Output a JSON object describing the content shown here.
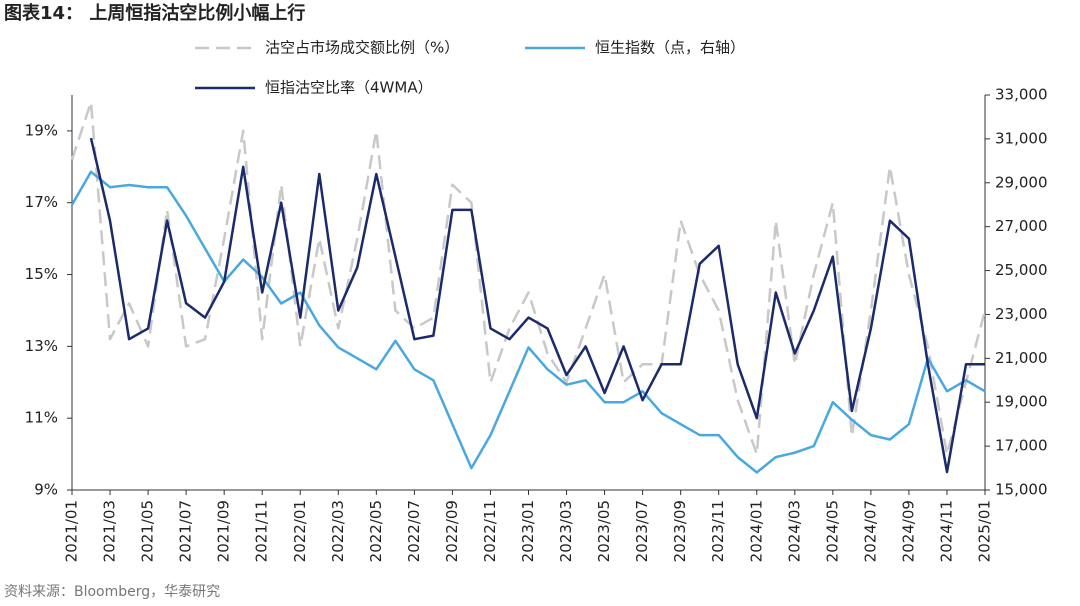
{
  "chart_data": {
    "type": "line",
    "title": "图表14：  上周恒指沽空比例小幅上行",
    "source": "资料来源：Bloomberg，华泰研究",
    "categories": [
      "2021/01",
      null,
      "2021/03",
      null,
      "2021/05",
      null,
      "2021/07",
      null,
      "2021/09",
      null,
      "2021/11",
      null,
      "2022/01",
      null,
      "2022/03",
      null,
      "2022/05",
      null,
      "2022/07",
      null,
      "2022/09",
      null,
      "2022/11",
      null,
      "2023/01",
      null,
      "2023/03",
      null,
      "2023/05",
      null,
      "2023/07",
      null,
      "2023/09",
      null,
      "2023/11",
      null,
      "2024/01",
      null,
      "2024/03",
      null,
      "2024/05",
      null,
      "2024/07",
      null,
      "2024/09",
      null,
      "2024/11",
      null,
      "2025/01"
    ],
    "series": [
      {
        "name": "沽空占市场成交额比例（%）",
        "color": "#c8c8c8",
        "dashed": true,
        "values": [
          18.2,
          19.8,
          13.2,
          14.2,
          13.0,
          16.8,
          13.0,
          13.2,
          16.0,
          19.0,
          13.2,
          17.5,
          13.0,
          16.0,
          13.5,
          16.0,
          19.0,
          14.0,
          13.5,
          13.8,
          17.5,
          17.0,
          12.0,
          13.5,
          14.5,
          12.8,
          12.0,
          13.5,
          15.0,
          12.0,
          12.5,
          12.5,
          16.5,
          15.0,
          14.0,
          11.5,
          10.0,
          16.5,
          12.5,
          15.0,
          17.0,
          10.5,
          14.0,
          18.0,
          15.0,
          13.0,
          10.0,
          12.0,
          14.0
        ]
      },
      {
        "name": "恒生指数（点，右轴）",
        "color": "#4aa8e0",
        "axis": "y2",
        "values": [
          28000,
          29500,
          28800,
          28900,
          28800,
          28800,
          27500,
          26000,
          24500,
          25500,
          24700,
          23500,
          24000,
          22500,
          21500,
          21000,
          20500,
          21800,
          20500,
          20000,
          18000,
          16000,
          17500,
          19500,
          21500,
          20500,
          19800,
          20000,
          19000,
          19000,
          19500,
          18500,
          18000,
          17500,
          17500,
          16500,
          15800,
          16500,
          16700,
          17000,
          19000,
          18200,
          17500,
          17300,
          18000,
          21000,
          19500,
          20000,
          19500
        ]
      },
      {
        "name": "恒指沽空比率（4WMA）",
        "color": "#1b2a6b",
        "values": [
          null,
          18.8,
          16.5,
          13.2,
          13.5,
          16.5,
          14.2,
          13.8,
          14.8,
          18.0,
          14.5,
          17.0,
          13.8,
          17.8,
          14.0,
          15.2,
          17.8,
          15.5,
          13.2,
          13.3,
          16.8,
          16.8,
          13.5,
          13.2,
          13.8,
          13.5,
          12.2,
          13.0,
          11.7,
          13.0,
          11.5,
          12.5,
          12.5,
          15.3,
          15.8,
          12.5,
          11.0,
          14.5,
          12.8,
          14.0,
          15.5,
          11.2,
          13.5,
          16.5,
          16.0,
          12.5,
          9.5,
          12.5,
          12.5
        ]
      }
    ],
    "ylim": [
      9,
      20
    ],
    "yticks": [
      {
        "value": 9,
        "label": "9%"
      },
      {
        "value": 11,
        "label": "11%"
      },
      {
        "value": 13,
        "label": "13%"
      },
      {
        "value": 15,
        "label": "15%"
      },
      {
        "value": 17,
        "label": "17%"
      },
      {
        "value": 19,
        "label": "19%"
      }
    ],
    "y2lim": [
      15000,
      33000
    ],
    "y2ticks": [
      {
        "value": 15000,
        "label": "15,000"
      },
      {
        "value": 17000,
        "label": "17,000"
      },
      {
        "value": 19000,
        "label": "19,000"
      },
      {
        "value": 21000,
        "label": "21,000"
      },
      {
        "value": 23000,
        "label": "23,000"
      },
      {
        "value": 25000,
        "label": "25,000"
      },
      {
        "value": 27000,
        "label": "27,000"
      },
      {
        "value": 29000,
        "label": "29,000"
      },
      {
        "value": 31000,
        "label": "31,000"
      },
      {
        "value": 33000,
        "label": "33,000"
      }
    ],
    "grid": false
  }
}
